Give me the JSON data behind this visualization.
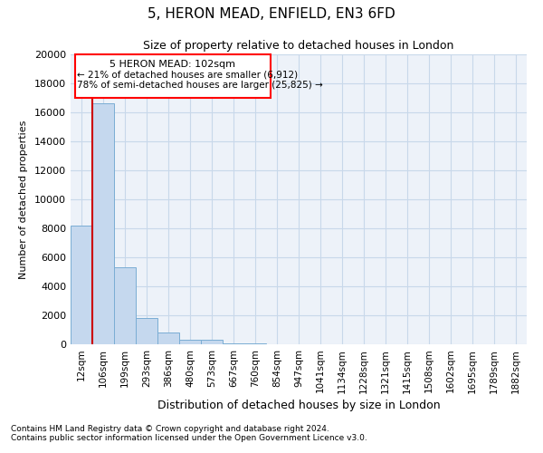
{
  "title1": "5, HERON MEAD, ENFIELD, EN3 6FD",
  "title2": "Size of property relative to detached houses in London",
  "xlabel": "Distribution of detached houses by size in London",
  "ylabel": "Number of detached properties",
  "categories": [
    "12sqm",
    "106sqm",
    "199sqm",
    "293sqm",
    "386sqm",
    "480sqm",
    "573sqm",
    "667sqm",
    "760sqm",
    "854sqm",
    "947sqm",
    "1041sqm",
    "1134sqm",
    "1228sqm",
    "1321sqm",
    "1415sqm",
    "1508sqm",
    "1602sqm",
    "1695sqm",
    "1789sqm",
    "1882sqm"
  ],
  "values": [
    8200,
    16600,
    5300,
    1800,
    800,
    300,
    300,
    50,
    50,
    0,
    0,
    0,
    0,
    0,
    0,
    0,
    0,
    0,
    0,
    0,
    0
  ],
  "bar_color": "#c5d8ee",
  "bar_edge_color": "#7aadd4",
  "grid_color": "#c8d8ea",
  "annotation_title": "5 HERON MEAD: 102sqm",
  "annotation_line1": "← 21% of detached houses are smaller (6,912)",
  "annotation_line2": "78% of semi-detached houses are larger (25,825) →",
  "vline_color": "#cc0000",
  "ylim": [
    0,
    20000
  ],
  "yticks": [
    0,
    2000,
    4000,
    6000,
    8000,
    10000,
    12000,
    14000,
    16000,
    18000,
    20000
  ],
  "footnote1": "Contains HM Land Registry data © Crown copyright and database right 2024.",
  "footnote2": "Contains public sector information licensed under the Open Government Licence v3.0.",
  "background_color": "#edf2f9",
  "title1_fontsize": 11,
  "title2_fontsize": 9
}
